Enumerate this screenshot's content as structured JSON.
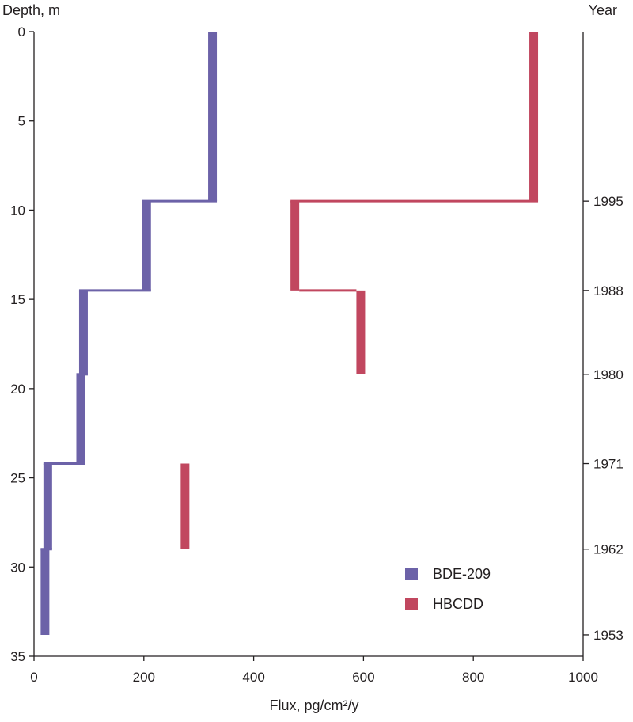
{
  "chart_data": {
    "type": "line",
    "ylabel": "Depth, m",
    "xlabel": "Flux, pg/cm²/y",
    "right_axis_label": "Year",
    "xlim": [
      0,
      1000
    ],
    "ylim": [
      0,
      35
    ],
    "y_inverted": true,
    "x_ticks": [
      "0",
      "200",
      "400",
      "600",
      "800",
      "1000"
    ],
    "y_ticks": [
      "0",
      "5",
      "10",
      "15",
      "20",
      "25",
      "30",
      "35"
    ],
    "right_ticks": [
      {
        "depth": 9.5,
        "label": "1995"
      },
      {
        "depth": 14.5,
        "label": "1988"
      },
      {
        "depth": 19.2,
        "label": "1980"
      },
      {
        "depth": 24.2,
        "label": "1971"
      },
      {
        "depth": 29.0,
        "label": "1962"
      },
      {
        "depth": 33.8,
        "label": "1953"
      }
    ],
    "grid": false,
    "legend_position": "bottom-right",
    "series": [
      {
        "name": "BDE-209",
        "color": "#6c62a8",
        "segments": [
          {
            "depth_top": 0,
            "depth_bottom": 9.5,
            "flux": 325
          },
          {
            "depth_top": 9.5,
            "depth_bottom": 14.5,
            "flux": 205
          },
          {
            "depth_top": 14.5,
            "depth_bottom": 19.2,
            "flux": 90
          },
          {
            "depth_top": 19.2,
            "depth_bottom": 24.2,
            "flux": 85
          },
          {
            "depth_top": 24.2,
            "depth_bottom": 29.0,
            "flux": 25
          },
          {
            "depth_top": 29.0,
            "depth_bottom": 33.8,
            "flux": 20
          }
        ]
      },
      {
        "name": "HBCDD",
        "color": "#c1475f",
        "segments": [
          {
            "depth_top": 0,
            "depth_bottom": 9.5,
            "flux": 910
          },
          {
            "depth_top": 9.5,
            "depth_bottom": 14.5,
            "flux": 475
          },
          {
            "depth_top": 14.5,
            "depth_bottom": 19.2,
            "flux": 595
          },
          {
            "depth_top": 24.2,
            "depth_bottom": 29.0,
            "flux": 275
          }
        ]
      }
    ]
  }
}
